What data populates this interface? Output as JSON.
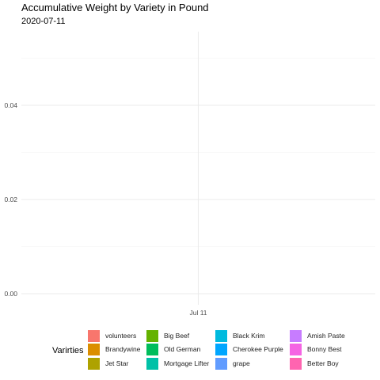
{
  "chart_data": {
    "type": "area",
    "title": "Accumulative Weight by Variety in Pound",
    "subtitle": "2020-07-11",
    "xlabel": "",
    "ylabel": "",
    "x_ticks": [
      "Jul 11"
    ],
    "y_ticks": [
      "0.00",
      "0.02",
      "0.04"
    ],
    "ylim": [
      0,
      0.052
    ],
    "grid": true,
    "legend_title": "Varirties",
    "legend_position": "bottom",
    "series": [
      {
        "name": "volunteers",
        "color": "#F8766D",
        "values": []
      },
      {
        "name": "Brandywine",
        "color": "#DB8E00",
        "values": []
      },
      {
        "name": "Jet Star",
        "color": "#AEA200",
        "values": []
      },
      {
        "name": "Big Beef",
        "color": "#64B200",
        "values": []
      },
      {
        "name": "Old German",
        "color": "#00BD5C",
        "values": []
      },
      {
        "name": "Mortgage Lifter",
        "color": "#00C1A7",
        "values": []
      },
      {
        "name": "Black Krim",
        "color": "#00BADE",
        "values": []
      },
      {
        "name": "Cherokee Purple",
        "color": "#00A6FF",
        "values": []
      },
      {
        "name": "grape",
        "color": "#619CFF",
        "values": []
      },
      {
        "name": "Amish Paste",
        "color": "#C77CFF",
        "values": []
      },
      {
        "name": "Bonny Best",
        "color": "#F564E3",
        "values": []
      },
      {
        "name": "Better Boy",
        "color": "#FF64B0",
        "values": []
      }
    ]
  }
}
